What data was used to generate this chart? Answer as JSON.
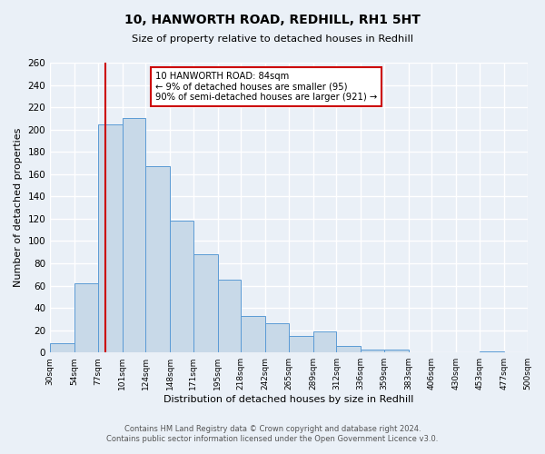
{
  "title": "10, HANWORTH ROAD, REDHILL, RH1 5HT",
  "subtitle": "Size of property relative to detached houses in Redhill",
  "xlabel": "Distribution of detached houses by size in Redhill",
  "ylabel": "Number of detached properties",
  "bin_edges": [
    30,
    54,
    77,
    101,
    124,
    148,
    171,
    195,
    218,
    242,
    265,
    289,
    312,
    336,
    359,
    383,
    406,
    430,
    453,
    477,
    500
  ],
  "bin_labels": [
    "30sqm",
    "54sqm",
    "77sqm",
    "101sqm",
    "124sqm",
    "148sqm",
    "171sqm",
    "195sqm",
    "218sqm",
    "242sqm",
    "265sqm",
    "289sqm",
    "312sqm",
    "336sqm",
    "359sqm",
    "383sqm",
    "406sqm",
    "430sqm",
    "453sqm",
    "477sqm",
    "500sqm"
  ],
  "counts": [
    8,
    62,
    205,
    210,
    167,
    118,
    88,
    65,
    33,
    26,
    15,
    19,
    6,
    3,
    3,
    0,
    0,
    0,
    1,
    0
  ],
  "bar_facecolor": "#c8d9e8",
  "bar_edgecolor": "#5b9bd5",
  "vline_x": 84,
  "vline_color": "#cc0000",
  "annotation_title": "10 HANWORTH ROAD: 84sqm",
  "annotation_line1": "← 9% of detached houses are smaller (95)",
  "annotation_line2": "90% of semi-detached houses are larger (921) →",
  "annotation_box_edgecolor": "#cc0000",
  "ylim": [
    0,
    260
  ],
  "yticks": [
    0,
    20,
    40,
    60,
    80,
    100,
    120,
    140,
    160,
    180,
    200,
    220,
    240,
    260
  ],
  "background_color": "#eaf0f7",
  "plot_background_color": "#eaf0f7",
  "grid_color": "#ffffff",
  "footer_line1": "Contains HM Land Registry data © Crown copyright and database right 2024.",
  "footer_line2": "Contains public sector information licensed under the Open Government Licence v3.0."
}
